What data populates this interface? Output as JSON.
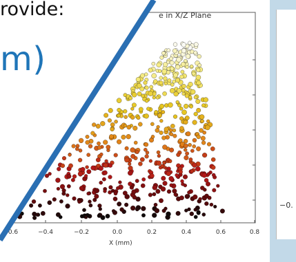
{
  "slide": {
    "provide_text": "rovide:",
    "unit_text": "m)"
  },
  "plot": {
    "title": "e in X/Z Plane",
    "x_label": "X (mm)",
    "x_ticks": [
      "0.6",
      "−0.4",
      "−0.2",
      "0.0",
      "0.2",
      "0.4",
      "0.6",
      "0.8"
    ],
    "colors": {
      "frame": "#5b5b5b",
      "diagonal_stroke": "#2a6fb3",
      "accent_text": "#1f75b8",
      "right_bg": "#c2d9e8"
    }
  },
  "right_panel": {
    "label": "−0."
  }
}
